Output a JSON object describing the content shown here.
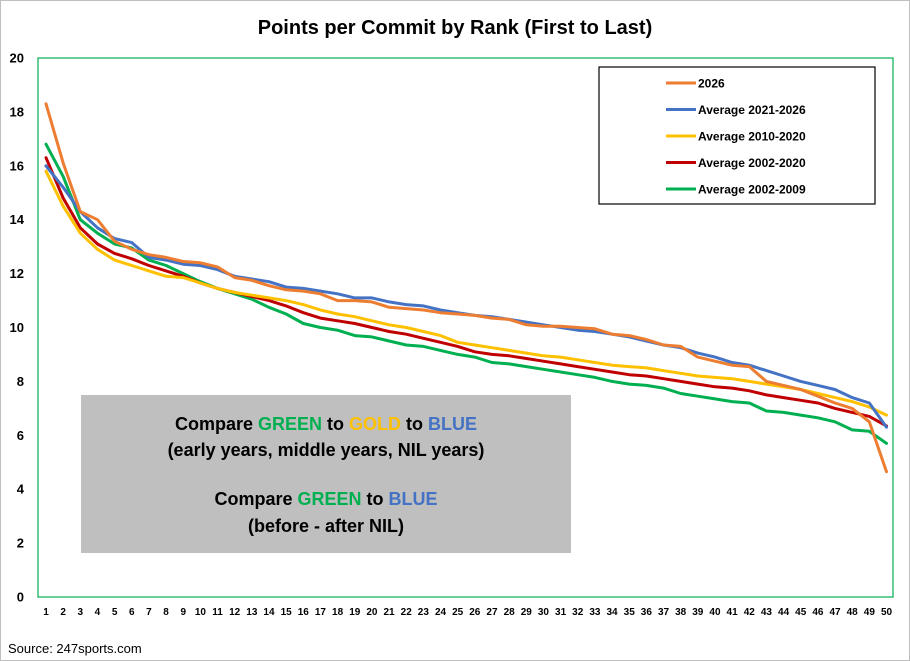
{
  "chart_data": {
    "type": "line",
    "title": "Points per Commit by Rank (First to Last)",
    "xlabel": "",
    "ylabel": "",
    "ylim": [
      0,
      20
    ],
    "yticks": [
      0,
      2,
      4,
      6,
      8,
      10,
      12,
      14,
      16,
      18,
      20
    ],
    "x": [
      1,
      2,
      3,
      4,
      5,
      6,
      7,
      8,
      9,
      10,
      11,
      12,
      13,
      14,
      15,
      16,
      17,
      18,
      19,
      20,
      21,
      22,
      23,
      24,
      25,
      26,
      27,
      28,
      29,
      30,
      31,
      32,
      33,
      34,
      35,
      36,
      37,
      38,
      39,
      40,
      41,
      42,
      43,
      44,
      45,
      46,
      47,
      48,
      49,
      50
    ],
    "grid": false,
    "legend_position": "top-right",
    "series": [
      {
        "name": "2026",
        "color": "#ED7D31",
        "values": [
          18.3,
          16.1,
          14.3,
          14.0,
          13.2,
          12.9,
          12.7,
          12.6,
          12.45,
          12.4,
          12.25,
          11.85,
          11.75,
          11.55,
          11.4,
          11.35,
          11.25,
          11.0,
          11.0,
          10.95,
          10.75,
          10.7,
          10.65,
          10.55,
          10.5,
          10.45,
          10.35,
          10.3,
          10.1,
          10.05,
          10.05,
          10.0,
          9.95,
          9.75,
          9.7,
          9.55,
          9.35,
          9.3,
          8.9,
          8.75,
          8.6,
          8.55,
          8.0,
          7.85,
          7.7,
          7.45,
          7.2,
          7.0,
          6.5,
          4.65
        ]
      },
      {
        "name": "Average 2021-2026",
        "color": "#4472C4",
        "values": [
          16.0,
          15.2,
          14.3,
          13.7,
          13.3,
          13.15,
          12.6,
          12.5,
          12.35,
          12.3,
          12.15,
          11.9,
          11.8,
          11.7,
          11.5,
          11.45,
          11.35,
          11.25,
          11.1,
          11.1,
          10.95,
          10.85,
          10.8,
          10.65,
          10.55,
          10.45,
          10.4,
          10.3,
          10.2,
          10.1,
          10.0,
          9.9,
          9.85,
          9.75,
          9.65,
          9.5,
          9.35,
          9.25,
          9.05,
          8.9,
          8.7,
          8.6,
          8.4,
          8.2,
          8.0,
          7.85,
          7.7,
          7.4,
          7.2,
          6.3
        ]
      },
      {
        "name": "Average 2010-2020",
        "color": "#FFC000",
        "values": [
          15.8,
          14.5,
          13.5,
          12.9,
          12.5,
          12.3,
          12.1,
          11.9,
          11.85,
          11.65,
          11.45,
          11.3,
          11.2,
          11.1,
          11.0,
          10.85,
          10.65,
          10.5,
          10.4,
          10.25,
          10.1,
          10.0,
          9.85,
          9.7,
          9.45,
          9.35,
          9.25,
          9.15,
          9.05,
          8.95,
          8.9,
          8.8,
          8.7,
          8.6,
          8.55,
          8.5,
          8.4,
          8.3,
          8.2,
          8.15,
          8.1,
          8.0,
          7.9,
          7.8,
          7.7,
          7.55,
          7.4,
          7.25,
          7.05,
          6.75
        ]
      },
      {
        "name": "Average 2002-2020",
        "color": "#C00000",
        "values": [
          16.3,
          14.8,
          13.7,
          13.1,
          12.75,
          12.55,
          12.3,
          12.1,
          11.9,
          11.65,
          11.45,
          11.3,
          11.15,
          11.0,
          10.8,
          10.55,
          10.35,
          10.25,
          10.15,
          10.0,
          9.85,
          9.75,
          9.6,
          9.45,
          9.3,
          9.1,
          9.0,
          8.95,
          8.85,
          8.75,
          8.65,
          8.55,
          8.45,
          8.35,
          8.25,
          8.2,
          8.1,
          8.0,
          7.9,
          7.8,
          7.75,
          7.65,
          7.5,
          7.4,
          7.3,
          7.2,
          7.0,
          6.85,
          6.7,
          6.35
        ]
      },
      {
        "name": "Average 2002-2009",
        "color": "#00B050",
        "values": [
          16.8,
          15.6,
          14.0,
          13.5,
          13.1,
          12.95,
          12.5,
          12.3,
          12.0,
          11.7,
          11.45,
          11.25,
          11.05,
          10.75,
          10.5,
          10.15,
          10.0,
          9.9,
          9.7,
          9.65,
          9.5,
          9.35,
          9.3,
          9.15,
          9.0,
          8.9,
          8.7,
          8.65,
          8.55,
          8.45,
          8.35,
          8.25,
          8.15,
          8.0,
          7.9,
          7.85,
          7.75,
          7.55,
          7.45,
          7.35,
          7.25,
          7.2,
          6.9,
          6.85,
          6.75,
          6.65,
          6.5,
          6.2,
          6.15,
          5.7
        ]
      }
    ],
    "annotation": {
      "background": "#BFBFBF",
      "lines": [
        [
          {
            "text": "Compare ",
            "color": "#000000"
          },
          {
            "text": "GREEN",
            "color": "#00B050"
          },
          {
            "text": " to ",
            "color": "#000000"
          },
          {
            "text": "GOLD",
            "color": "#FFC000"
          },
          {
            "text": " to ",
            "color": "#000000"
          },
          {
            "text": "BLUE",
            "color": "#4472C4"
          }
        ],
        [
          {
            "text": "(early years, middle years, NIL years)",
            "color": "#000000"
          }
        ],
        [
          {
            "text": "",
            "color": "#000000"
          }
        ],
        [
          {
            "text": "Compare ",
            "color": "#000000"
          },
          {
            "text": "GREEN",
            "color": "#00B050"
          },
          {
            "text": " to ",
            "color": "#000000"
          },
          {
            "text": "BLUE",
            "color": "#4472C4"
          }
        ],
        [
          {
            "text": "(before - after NIL)",
            "color": "#000000"
          }
        ]
      ]
    },
    "source": "Source: 247sports.com",
    "border_color": "#00B050"
  }
}
